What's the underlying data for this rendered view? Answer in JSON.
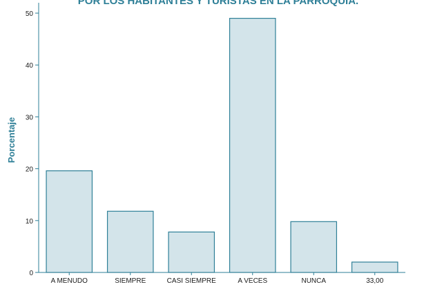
{
  "chart_data": {
    "type": "bar",
    "title": "POR LOS HABITANTES Y TURISTAS EN LA PARROQUIA.",
    "xlabel": "",
    "ylabel": "Porcentaje",
    "categories": [
      "A MENUDO",
      "SIEMPRE",
      "CASI SIEMPRE",
      "A VECES",
      "NUNCA",
      "33,00"
    ],
    "values": [
      19.6,
      11.8,
      7.8,
      49.0,
      9.8,
      2.0
    ],
    "ylim": [
      0,
      52
    ],
    "yticks": [
      0,
      10,
      20,
      30,
      40,
      50
    ],
    "grid": false,
    "colors": {
      "bar_fill": "#d3e4ea",
      "bar_stroke": "#2e7f97",
      "axis": "#2e7f97",
      "text": "#1a1a1a",
      "title": "#2e7f97",
      "ylabel": "#2e7f97"
    }
  }
}
